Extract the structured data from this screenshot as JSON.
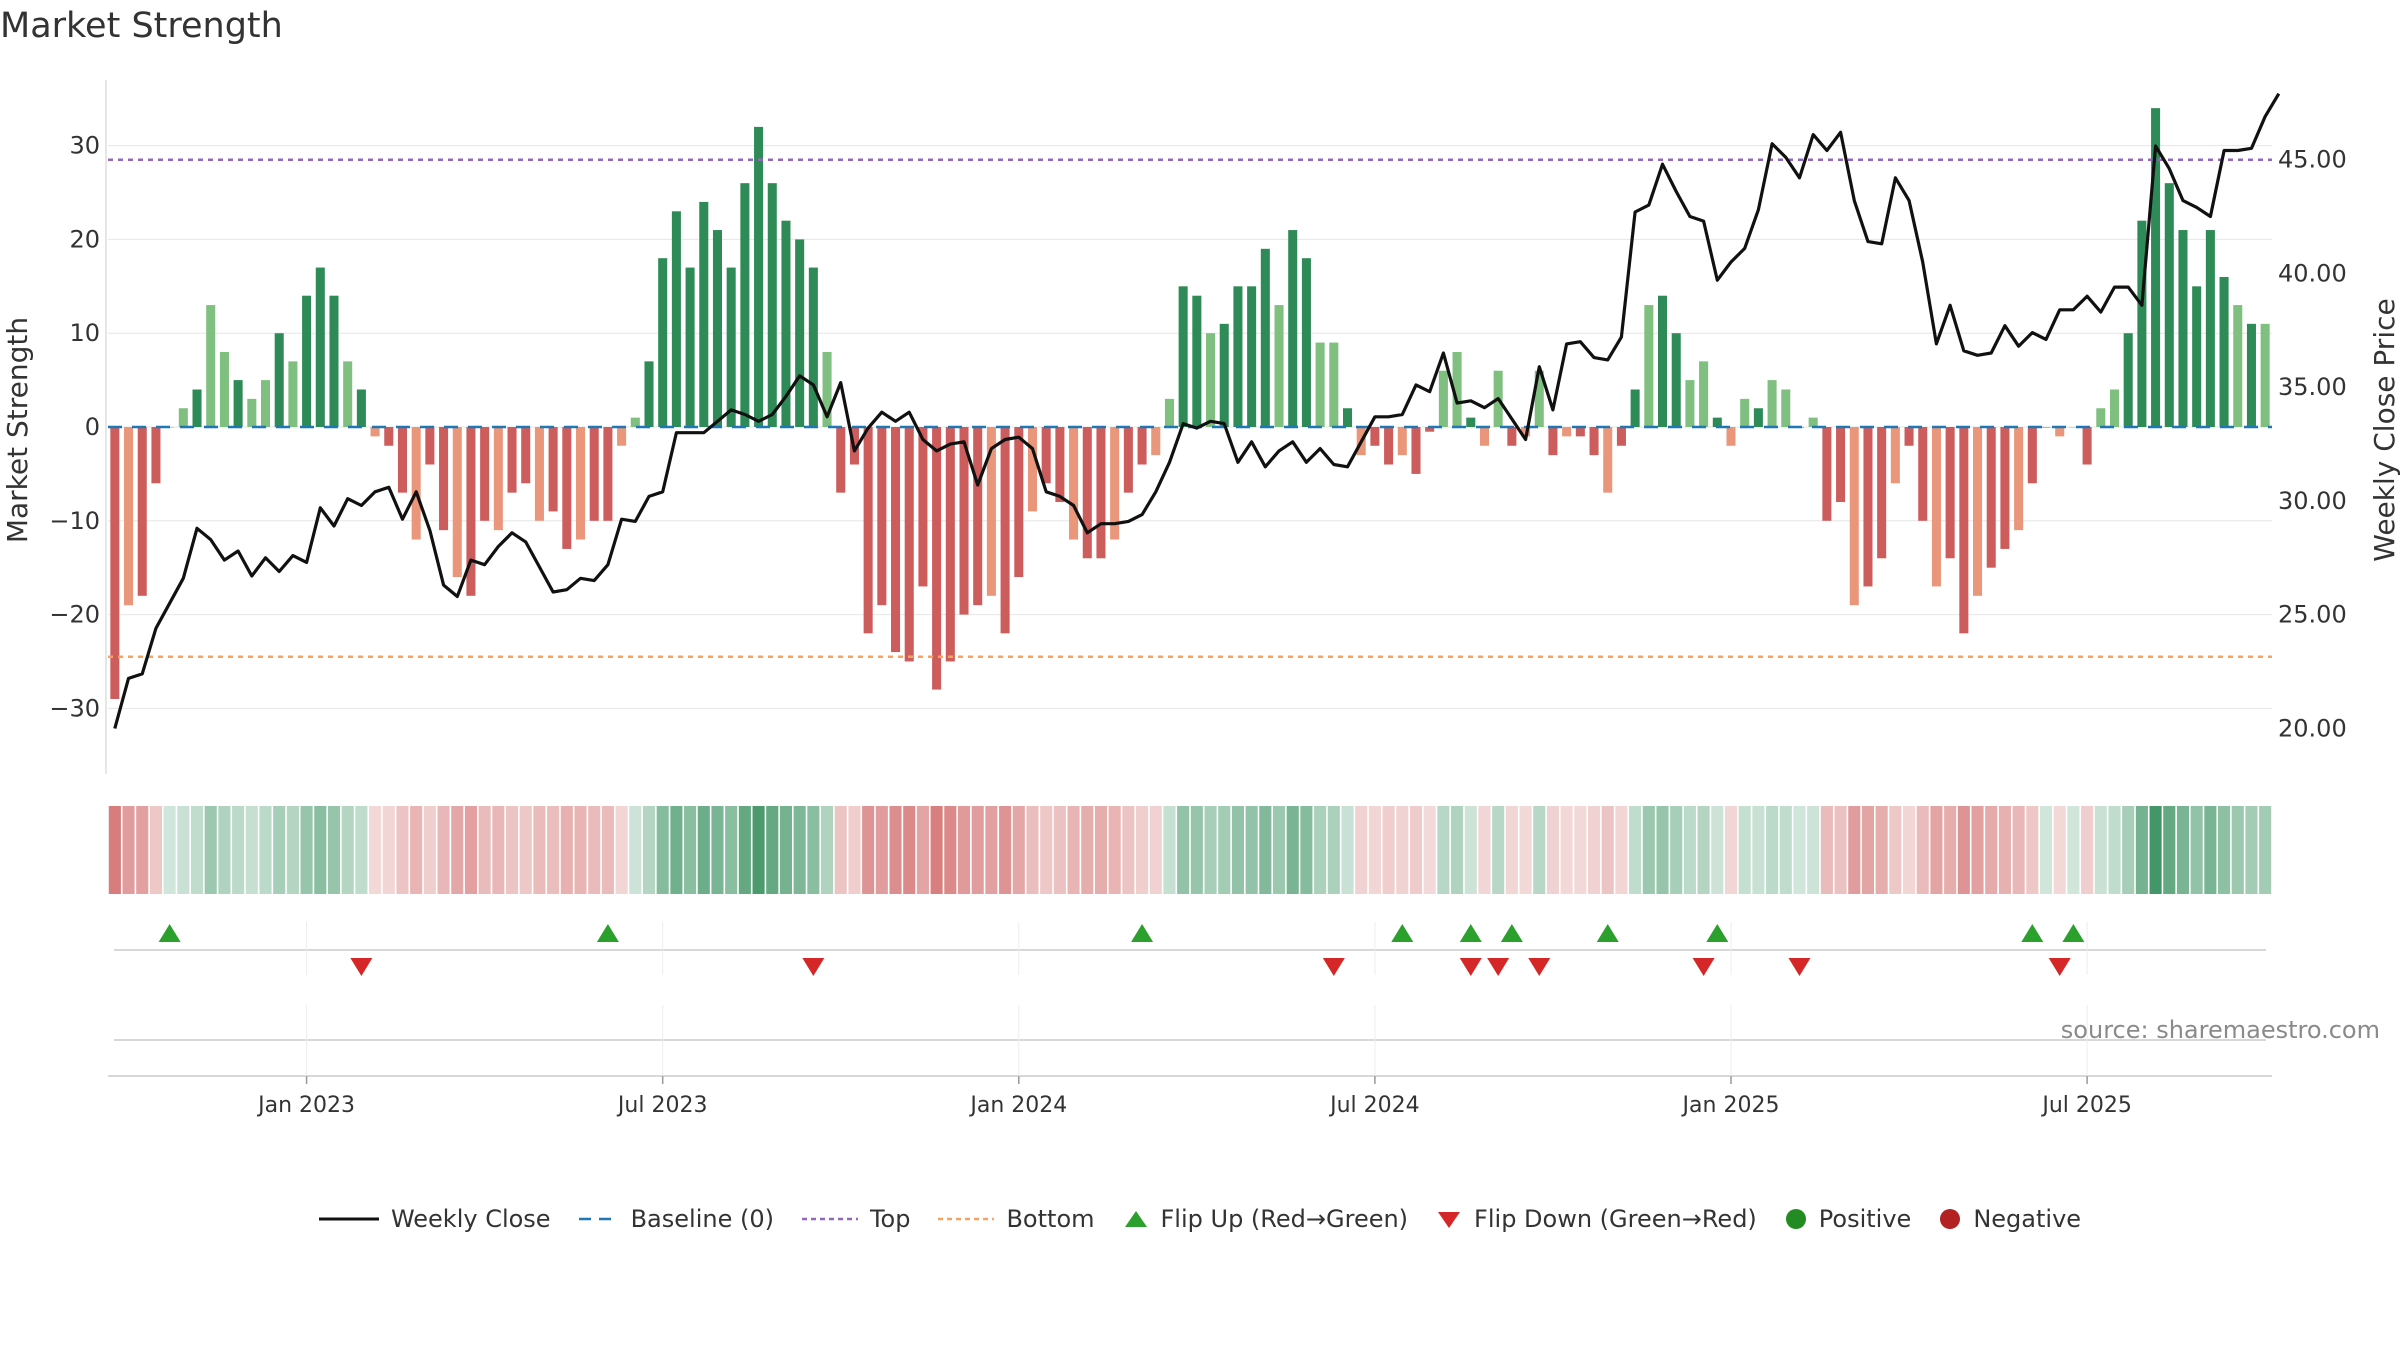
{
  "chart_data": {
    "type": "bar",
    "title": "Market Strength",
    "ylabel_left": "Market Strength",
    "ylabel_right": "Weekly Close Price",
    "ylim_left": [
      -37,
      37
    ],
    "ylim_right": [
      18.0,
      48.5
    ],
    "yticks_left": [
      30,
      20,
      10,
      0,
      -10,
      -20,
      -30
    ],
    "yticks_left_labels": [
      "30",
      "20",
      "10",
      "0",
      "−10",
      "−20",
      "−30"
    ],
    "yticks_right": [
      45,
      40,
      35,
      30,
      25,
      20
    ],
    "yticks_right_labels": [
      "45.00",
      "40.00",
      "35.00",
      "30.00",
      "25.00",
      "20.00"
    ],
    "x_ticks": [
      {
        "label": "Jan 2023",
        "week": 14
      },
      {
        "label": "Jul 2023",
        "week": 40
      },
      {
        "label": "Jan 2024",
        "week": 66
      },
      {
        "label": "Jul 2024",
        "week": 92
      },
      {
        "label": "Jan 2025",
        "week": 118
      },
      {
        "label": "Jul 2025",
        "week": 144
      }
    ],
    "top_level": 28.5,
    "bottom_level": -24.5,
    "baseline": 0,
    "colors": {
      "pos_strong": "#2e8b57",
      "pos_light": "#7fbf7f",
      "neg_strong": "#cd5c5c",
      "neg_light": "#e9967a",
      "line": "#111111",
      "top": "#9467bd",
      "bottom": "#f4a460",
      "baseline": "#1f77b4",
      "flip_up": "#2ca02c",
      "flip_down": "#d62728",
      "positive": "#228b22",
      "negative": "#b22222",
      "grid": "#dddddd"
    },
    "strength": [
      -29,
      -19,
      -18,
      -6,
      0,
      2,
      4,
      13,
      8,
      5,
      3,
      5,
      10,
      7,
      14,
      17,
      14,
      7,
      4,
      -1,
      -2,
      -7,
      -12,
      -4,
      -11,
      -16,
      -18,
      -10,
      -11,
      -7,
      -6,
      -10,
      -9,
      -13,
      -12,
      -10,
      -10,
      -2,
      1,
      7,
      18,
      23,
      17,
      24,
      21,
      17,
      26,
      32,
      26,
      22,
      20,
      17,
      8,
      -7,
      -4,
      -22,
      -19,
      -24,
      -25,
      -17,
      -28,
      -25,
      -20,
      -19,
      -18,
      -22,
      -16,
      -9,
      -6,
      -8,
      -12,
      -14,
      -14,
      -12,
      -7,
      -4,
      -3,
      3,
      15,
      14,
      10,
      11,
      15,
      15,
      19,
      13,
      21,
      18,
      9,
      9,
      2,
      -3,
      -2,
      -4,
      -3,
      -5,
      -0.5,
      6,
      8,
      1,
      -2,
      6,
      -2,
      -1,
      6,
      -3,
      -1,
      -1,
      -3,
      -7,
      -2,
      4,
      13,
      14,
      10,
      5,
      7,
      1,
      -2,
      3,
      2,
      5,
      4,
      0,
      1,
      -10,
      -8,
      -19,
      -17,
      -14,
      -6,
      -2,
      -10,
      -17,
      -14,
      -22,
      -18,
      -15,
      -13,
      -11,
      -6,
      0,
      -1,
      0,
      -4,
      2,
      4,
      10,
      22,
      34,
      26,
      21,
      15,
      21,
      16,
      13,
      11,
      11
    ],
    "price": [
      20.0,
      22.2,
      22.4,
      24.4,
      25.5,
      26.6,
      28.8,
      28.3,
      27.4,
      27.8,
      26.7,
      27.5,
      26.9,
      27.6,
      27.3,
      29.7,
      28.9,
      30.1,
      29.8,
      30.4,
      30.6,
      29.2,
      30.4,
      28.7,
      26.3,
      25.8,
      27.4,
      27.2,
      28.0,
      28.6,
      28.2,
      27.1,
      26.0,
      26.1,
      26.6,
      26.5,
      27.2,
      29.2,
      29.1,
      30.2,
      30.4,
      33.0,
      33.0,
      33.0,
      33.5,
      34.0,
      33.8,
      33.5,
      33.8,
      34.6,
      35.5,
      35.1,
      33.7,
      35.2,
      32.2,
      33.2,
      33.9,
      33.5,
      33.9,
      32.7,
      32.2,
      32.5,
      32.6,
      30.7,
      32.3,
      32.7,
      32.8,
      32.3,
      30.4,
      30.2,
      29.8,
      28.6,
      29.0,
      29.0,
      29.1,
      29.4,
      30.4,
      31.7,
      33.4,
      33.2,
      33.5,
      33.4,
      31.7,
      32.6,
      31.5,
      32.2,
      32.6,
      31.7,
      32.3,
      31.6,
      31.5,
      32.6,
      33.7,
      33.7,
      33.8,
      35.1,
      34.8,
      36.5,
      34.3,
      34.4,
      34.1,
      34.5,
      33.6,
      32.7,
      35.9,
      34.0,
      36.9,
      37.0,
      36.3,
      36.2,
      37.2,
      42.7,
      43.0,
      44.8,
      43.6,
      42.5,
      42.3,
      39.7,
      40.5,
      41.1,
      42.8,
      45.7,
      45.1,
      44.2,
      46.1,
      45.4,
      46.2,
      43.2,
      41.4,
      41.3,
      44.2,
      43.2,
      40.5,
      36.9,
      38.6,
      36.6,
      36.4,
      36.5,
      37.7,
      36.8,
      37.4,
      37.1,
      38.4,
      38.4,
      39.0,
      38.3,
      39.4,
      39.4,
      38.6,
      45.6,
      44.6,
      43.2,
      42.9,
      42.5,
      45.4,
      45.4,
      45.5,
      46.9,
      47.9
    ],
    "flip_up_weeks": [
      4,
      36,
      75,
      94,
      99,
      102,
      109,
      117,
      140,
      143
    ],
    "flip_down_weeks": [
      18,
      51,
      89,
      99,
      101,
      104,
      116,
      123,
      142
    ],
    "source": "source: sharemaestro.com",
    "legend": [
      {
        "label": "Weekly Close",
        "kind": "line"
      },
      {
        "label": "Baseline (0)",
        "kind": "baseline"
      },
      {
        "label": "Top",
        "kind": "top"
      },
      {
        "label": "Bottom",
        "kind": "bottom"
      },
      {
        "label": "Flip Up (Red→Green)",
        "kind": "flip_up"
      },
      {
        "label": "Flip Down (Green→Red)",
        "kind": "flip_down"
      },
      {
        "label": "Positive",
        "kind": "positive"
      },
      {
        "label": "Negative",
        "kind": "negative"
      }
    ]
  }
}
